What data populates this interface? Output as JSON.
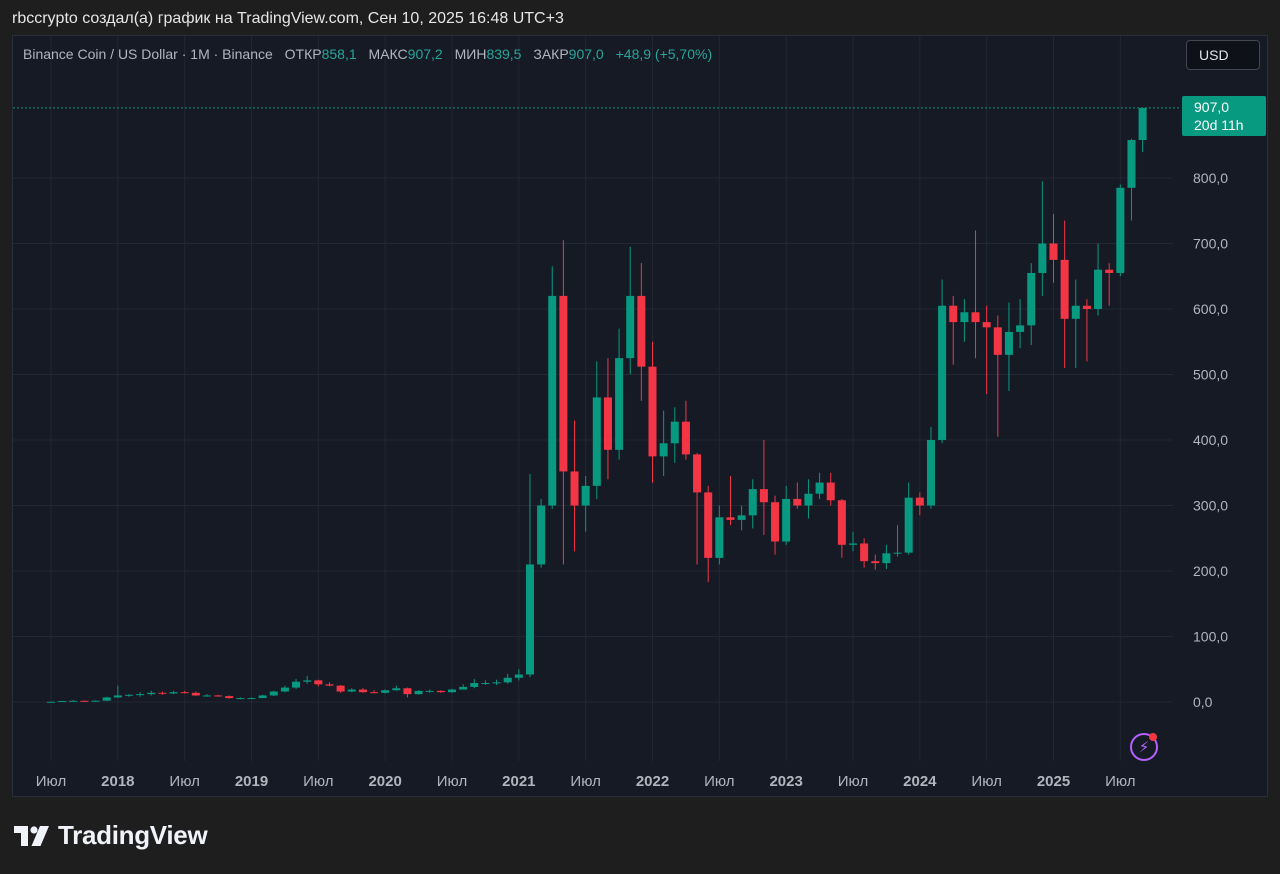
{
  "caption": "rbccrypto создал(а) график на TradingView.com, Сен 10, 2025 16:48 UTC+3",
  "legend": {
    "symbol": "Binance Coin / US Dollar · 1M · Binance",
    "open_label": "ОТКР",
    "open": "858,1",
    "high_label": "МАКС",
    "high": "907,2",
    "low_label": "МИН",
    "low": "839,5",
    "close_label": "ЗАКР",
    "close": "907,0",
    "change": "+48,9 (+5,70%)"
  },
  "currency_button": "USD",
  "last_price": {
    "value": "907,0",
    "countdown": "20d 11h"
  },
  "brand": "TradingView",
  "colors": {
    "up": "#089981",
    "down": "#f23645",
    "background": "#161a25",
    "grid": "#232733"
  },
  "chart_data": {
    "type": "candlestick",
    "interval": "1M",
    "ylim": [
      -100,
      930
    ],
    "y_ticks": [
      0,
      100,
      200,
      300,
      400,
      500,
      600,
      700,
      800
    ],
    "y_tick_labels": [
      "0,0",
      "100,0",
      "200,0",
      "300,0",
      "400,0",
      "500,0",
      "600,0",
      "700,0",
      "800,0"
    ],
    "x_ticks": [
      {
        "label": "Июл",
        "date": "2017-07",
        "bold": false
      },
      {
        "label": "2018",
        "date": "2018-01",
        "bold": true
      },
      {
        "label": "Июл",
        "date": "2018-07",
        "bold": false
      },
      {
        "label": "2019",
        "date": "2019-01",
        "bold": true
      },
      {
        "label": "Июл",
        "date": "2019-07",
        "bold": false
      },
      {
        "label": "2020",
        "date": "2020-01",
        "bold": true
      },
      {
        "label": "Июл",
        "date": "2020-07",
        "bold": false
      },
      {
        "label": "2021",
        "date": "2021-01",
        "bold": true
      },
      {
        "label": "Июл",
        "date": "2021-07",
        "bold": false
      },
      {
        "label": "2022",
        "date": "2022-01",
        "bold": true
      },
      {
        "label": "Июл",
        "date": "2022-07",
        "bold": false
      },
      {
        "label": "2023",
        "date": "2023-01",
        "bold": true
      },
      {
        "label": "Июл",
        "date": "2023-07",
        "bold": false
      },
      {
        "label": "2024",
        "date": "2024-01",
        "bold": true
      },
      {
        "label": "Июл",
        "date": "2024-07",
        "bold": false
      },
      {
        "label": "2025",
        "date": "2025-01",
        "bold": true
      },
      {
        "label": "Июл",
        "date": "2025-07",
        "bold": false
      }
    ],
    "candles": [
      {
        "date": "2017-07",
        "o": 0.1,
        "h": 0.5,
        "l": 0.1,
        "c": 0.3
      },
      {
        "date": "2017-08",
        "o": 0.3,
        "h": 2,
        "l": 0.2,
        "c": 1.5
      },
      {
        "date": "2017-09",
        "o": 1.5,
        "h": 3,
        "l": 1,
        "c": 1.8
      },
      {
        "date": "2017-10",
        "o": 1.8,
        "h": 2.5,
        "l": 1.3,
        "c": 1.5
      },
      {
        "date": "2017-11",
        "o": 1.5,
        "h": 2.5,
        "l": 1.4,
        "c": 2
      },
      {
        "date": "2017-12",
        "o": 2,
        "h": 8,
        "l": 1.8,
        "c": 7
      },
      {
        "date": "2018-01",
        "o": 7,
        "h": 25,
        "l": 6,
        "c": 10
      },
      {
        "date": "2018-02",
        "o": 10,
        "h": 12,
        "l": 8,
        "c": 11
      },
      {
        "date": "2018-03",
        "o": 11,
        "h": 15,
        "l": 8,
        "c": 12
      },
      {
        "date": "2018-04",
        "o": 12,
        "h": 17,
        "l": 10,
        "c": 14
      },
      {
        "date": "2018-05",
        "o": 14,
        "h": 16,
        "l": 11,
        "c": 13
      },
      {
        "date": "2018-06",
        "o": 13,
        "h": 17,
        "l": 12,
        "c": 15
      },
      {
        "date": "2018-07",
        "o": 15,
        "h": 17,
        "l": 13,
        "c": 14
      },
      {
        "date": "2018-08",
        "o": 14,
        "h": 16,
        "l": 9,
        "c": 10
      },
      {
        "date": "2018-09",
        "o": 10,
        "h": 12,
        "l": 8,
        "c": 10
      },
      {
        "date": "2018-10",
        "o": 10,
        "h": 11,
        "l": 8,
        "c": 9
      },
      {
        "date": "2018-11",
        "o": 9,
        "h": 10,
        "l": 5,
        "c": 6
      },
      {
        "date": "2018-12",
        "o": 6,
        "h": 7,
        "l": 4,
        "c": 6
      },
      {
        "date": "2019-01",
        "o": 6,
        "h": 7,
        "l": 5,
        "c": 6
      },
      {
        "date": "2019-02",
        "o": 6,
        "h": 11,
        "l": 6,
        "c": 10
      },
      {
        "date": "2019-03",
        "o": 10,
        "h": 17,
        "l": 9,
        "c": 16
      },
      {
        "date": "2019-04",
        "o": 16,
        "h": 25,
        "l": 15,
        "c": 22
      },
      {
        "date": "2019-05",
        "o": 22,
        "h": 35,
        "l": 20,
        "c": 31
      },
      {
        "date": "2019-06",
        "o": 31,
        "h": 40,
        "l": 28,
        "c": 33
      },
      {
        "date": "2019-07",
        "o": 33,
        "h": 34,
        "l": 24,
        "c": 27
      },
      {
        "date": "2019-08",
        "o": 27,
        "h": 30,
        "l": 24,
        "c": 25
      },
      {
        "date": "2019-09",
        "o": 25,
        "h": 26,
        "l": 14,
        "c": 16
      },
      {
        "date": "2019-10",
        "o": 16,
        "h": 21,
        "l": 15,
        "c": 19
      },
      {
        "date": "2019-11",
        "o": 19,
        "h": 21,
        "l": 14,
        "c": 15
      },
      {
        "date": "2019-12",
        "o": 15,
        "h": 18,
        "l": 13,
        "c": 14
      },
      {
        "date": "2020-01",
        "o": 14,
        "h": 19,
        "l": 13,
        "c": 18
      },
      {
        "date": "2020-02",
        "o": 18,
        "h": 25,
        "l": 17,
        "c": 21
      },
      {
        "date": "2020-03",
        "o": 21,
        "h": 22,
        "l": 7,
        "c": 12
      },
      {
        "date": "2020-04",
        "o": 12,
        "h": 18,
        "l": 11,
        "c": 17
      },
      {
        "date": "2020-05",
        "o": 17,
        "h": 19,
        "l": 14,
        "c": 17
      },
      {
        "date": "2020-06",
        "o": 17,
        "h": 18,
        "l": 14,
        "c": 15
      },
      {
        "date": "2020-07",
        "o": 15,
        "h": 20,
        "l": 14,
        "c": 19
      },
      {
        "date": "2020-08",
        "o": 19,
        "h": 27,
        "l": 19,
        "c": 23
      },
      {
        "date": "2020-09",
        "o": 23,
        "h": 35,
        "l": 21,
        "c": 29
      },
      {
        "date": "2020-10",
        "o": 29,
        "h": 33,
        "l": 26,
        "c": 29
      },
      {
        "date": "2020-11",
        "o": 29,
        "h": 34,
        "l": 26,
        "c": 30
      },
      {
        "date": "2020-12",
        "o": 30,
        "h": 43,
        "l": 28,
        "c": 37
      },
      {
        "date": "2021-01",
        "o": 37,
        "h": 50,
        "l": 33,
        "c": 42
      },
      {
        "date": "2021-02",
        "o": 42,
        "h": 348,
        "l": 38,
        "c": 210
      },
      {
        "date": "2021-03",
        "o": 210,
        "h": 310,
        "l": 205,
        "c": 300
      },
      {
        "date": "2021-04",
        "o": 300,
        "h": 665,
        "l": 295,
        "c": 620
      },
      {
        "date": "2021-05",
        "o": 620,
        "h": 705,
        "l": 210,
        "c": 352
      },
      {
        "date": "2021-06",
        "o": 352,
        "h": 430,
        "l": 230,
        "c": 300
      },
      {
        "date": "2021-07",
        "o": 300,
        "h": 345,
        "l": 260,
        "c": 330
      },
      {
        "date": "2021-08",
        "o": 330,
        "h": 520,
        "l": 310,
        "c": 465
      },
      {
        "date": "2021-09",
        "o": 465,
        "h": 525,
        "l": 340,
        "c": 385
      },
      {
        "date": "2021-10",
        "o": 385,
        "h": 570,
        "l": 370,
        "c": 525
      },
      {
        "date": "2021-11",
        "o": 525,
        "h": 695,
        "l": 500,
        "c": 620
      },
      {
        "date": "2021-12",
        "o": 620,
        "h": 670,
        "l": 460,
        "c": 512
      },
      {
        "date": "2022-01",
        "o": 512,
        "h": 550,
        "l": 335,
        "c": 375
      },
      {
        "date": "2022-02",
        "o": 375,
        "h": 445,
        "l": 345,
        "c": 395
      },
      {
        "date": "2022-03",
        "o": 395,
        "h": 450,
        "l": 365,
        "c": 428
      },
      {
        "date": "2022-04",
        "o": 428,
        "h": 460,
        "l": 370,
        "c": 378
      },
      {
        "date": "2022-05",
        "o": 378,
        "h": 380,
        "l": 210,
        "c": 320
      },
      {
        "date": "2022-06",
        "o": 320,
        "h": 330,
        "l": 183,
        "c": 220
      },
      {
        "date": "2022-07",
        "o": 220,
        "h": 300,
        "l": 210,
        "c": 282
      },
      {
        "date": "2022-08",
        "o": 282,
        "h": 345,
        "l": 270,
        "c": 278
      },
      {
        "date": "2022-09",
        "o": 278,
        "h": 300,
        "l": 262,
        "c": 285
      },
      {
        "date": "2022-10",
        "o": 285,
        "h": 340,
        "l": 265,
        "c": 325
      },
      {
        "date": "2022-11",
        "o": 325,
        "h": 400,
        "l": 255,
        "c": 305
      },
      {
        "date": "2022-12",
        "o": 305,
        "h": 315,
        "l": 225,
        "c": 245
      },
      {
        "date": "2023-01",
        "o": 245,
        "h": 330,
        "l": 240,
        "c": 310
      },
      {
        "date": "2023-02",
        "o": 310,
        "h": 335,
        "l": 295,
        "c": 300
      },
      {
        "date": "2023-03",
        "o": 300,
        "h": 340,
        "l": 280,
        "c": 318
      },
      {
        "date": "2023-04",
        "o": 318,
        "h": 350,
        "l": 310,
        "c": 335
      },
      {
        "date": "2023-05",
        "o": 335,
        "h": 350,
        "l": 300,
        "c": 308
      },
      {
        "date": "2023-06",
        "o": 308,
        "h": 310,
        "l": 220,
        "c": 240
      },
      {
        "date": "2023-07",
        "o": 240,
        "h": 260,
        "l": 230,
        "c": 242
      },
      {
        "date": "2023-08",
        "o": 242,
        "h": 250,
        "l": 205,
        "c": 215
      },
      {
        "date": "2023-09",
        "o": 215,
        "h": 225,
        "l": 202,
        "c": 212
      },
      {
        "date": "2023-10",
        "o": 212,
        "h": 240,
        "l": 203,
        "c": 227
      },
      {
        "date": "2023-11",
        "o": 227,
        "h": 270,
        "l": 222,
        "c": 228
      },
      {
        "date": "2023-12",
        "o": 228,
        "h": 335,
        "l": 225,
        "c": 312
      },
      {
        "date": "2024-01",
        "o": 312,
        "h": 320,
        "l": 285,
        "c": 300
      },
      {
        "date": "2024-02",
        "o": 300,
        "h": 420,
        "l": 295,
        "c": 400
      },
      {
        "date": "2024-03",
        "o": 400,
        "h": 645,
        "l": 395,
        "c": 605
      },
      {
        "date": "2024-04",
        "o": 605,
        "h": 620,
        "l": 515,
        "c": 580
      },
      {
        "date": "2024-05",
        "o": 580,
        "h": 615,
        "l": 550,
        "c": 595
      },
      {
        "date": "2024-06",
        "o": 595,
        "h": 720,
        "l": 525,
        "c": 580
      },
      {
        "date": "2024-07",
        "o": 580,
        "h": 605,
        "l": 470,
        "c": 572
      },
      {
        "date": "2024-08",
        "o": 572,
        "h": 590,
        "l": 405,
        "c": 530
      },
      {
        "date": "2024-09",
        "o": 530,
        "h": 610,
        "l": 475,
        "c": 565
      },
      {
        "date": "2024-10",
        "o": 565,
        "h": 615,
        "l": 540,
        "c": 575
      },
      {
        "date": "2024-11",
        "o": 575,
        "h": 670,
        "l": 545,
        "c": 655
      },
      {
        "date": "2024-12",
        "o": 655,
        "h": 795,
        "l": 620,
        "c": 700
      },
      {
        "date": "2025-01",
        "o": 700,
        "h": 745,
        "l": 640,
        "c": 675
      },
      {
        "date": "2025-02",
        "o": 675,
        "h": 735,
        "l": 510,
        "c": 585
      },
      {
        "date": "2025-03",
        "o": 585,
        "h": 645,
        "l": 510,
        "c": 605
      },
      {
        "date": "2025-04",
        "o": 605,
        "h": 615,
        "l": 520,
        "c": 600
      },
      {
        "date": "2025-05",
        "o": 600,
        "h": 700,
        "l": 590,
        "c": 660
      },
      {
        "date": "2025-06",
        "o": 660,
        "h": 670,
        "l": 605,
        "c": 655
      },
      {
        "date": "2025-07",
        "o": 655,
        "h": 790,
        "l": 650,
        "c": 785
      },
      {
        "date": "2025-08",
        "o": 785,
        "h": 860,
        "l": 735,
        "c": 858
      },
      {
        "date": "2025-09",
        "o": 858,
        "h": 907.2,
        "l": 839.5,
        "c": 907
      }
    ]
  }
}
